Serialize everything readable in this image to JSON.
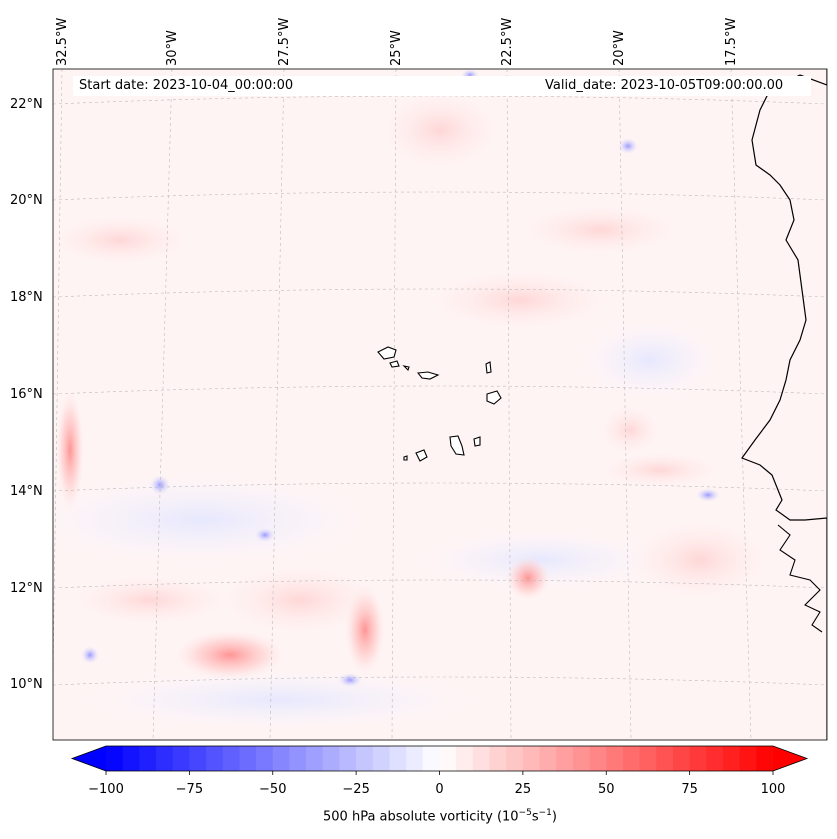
{
  "map": {
    "title_left": "Start date: 2023-10-04_00:00:00",
    "title_right": "Valid_date: 2023-10-05T09:00:00.00",
    "lon_labels": [
      "32.5°W",
      "30°W",
      "27.5°W",
      "25°W",
      "22.5°W",
      "20°W",
      "17.5°W"
    ],
    "lat_labels": [
      "22°N",
      "20°N",
      "18°N",
      "16°N",
      "14°N",
      "12°N",
      "10°N"
    ]
  },
  "colorbar": {
    "ticks": [
      "−100",
      "−75",
      "−50",
      "−25",
      "0",
      "25",
      "50",
      "75",
      "100"
    ],
    "label_main": "500 hPa absolute vorticity (10",
    "label_exp1": "−5",
    "label_mid": "s",
    "label_exp2": "−1",
    "label_end": ")",
    "range": [
      -100,
      100
    ],
    "cmap_low": "#0000ff",
    "cmap_mid": "#ffffff",
    "cmap_high": "#ff0000"
  },
  "colors": {
    "background_tint": "#fff4f4",
    "coastline": "#000000",
    "gridline": "#bbbbbb"
  }
}
